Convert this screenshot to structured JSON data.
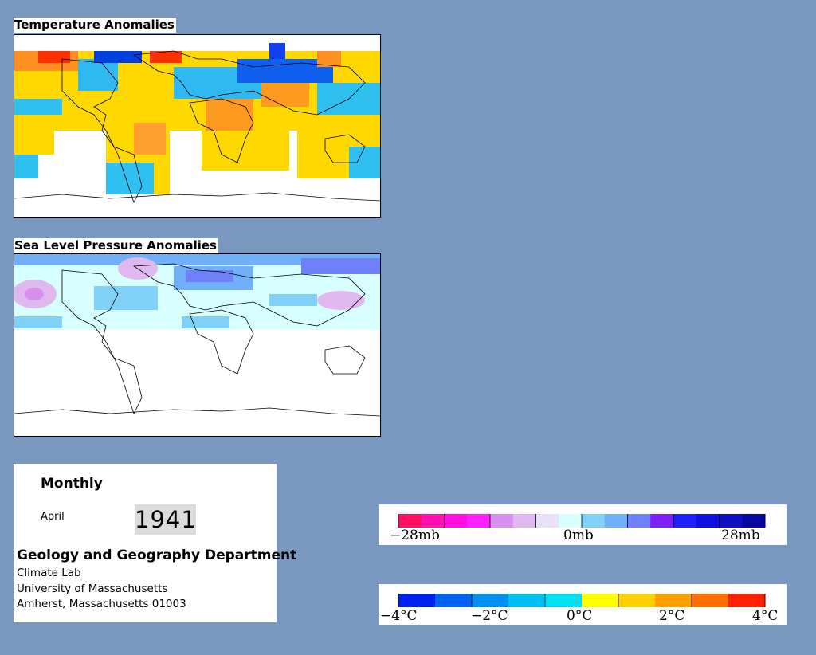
{
  "temperature_map": {
    "title": "Temperature Anomalies"
  },
  "pressure_map": {
    "title": "Sea Level Pressure Anomalies"
  },
  "info": {
    "period": "Monthly",
    "month": "April",
    "year": "1941",
    "department": "Geology and Geography Department",
    "address_lines": [
      "Climate Lab",
      "University of Massachusetts",
      "Amherst, Massachusetts 01003"
    ]
  },
  "pressure_legend": {
    "labels": [
      "−28mb",
      "0mb",
      "28mb"
    ],
    "colors": [
      "#ff1060",
      "#ff10b0",
      "#ff10e0",
      "#ff20ff",
      "#d890f0",
      "#e0b8f0",
      "#e8e0f8",
      "#d8ffff",
      "#80d0f8",
      "#70b0f8",
      "#7080f8",
      "#8020f8",
      "#2020f8",
      "#1010e0",
      "#1010c0",
      "#0808a0"
    ]
  },
  "temperature_legend": {
    "labels": [
      "−4°C",
      "−2°C",
      "0°C",
      "2°C",
      "4°C"
    ],
    "colors": [
      "#0020f0",
      "#0060f0",
      "#0090f0",
      "#00c0f0",
      "#00e0f0",
      "#ffff00",
      "#ffd000",
      "#ffa000",
      "#ff7000",
      "#ff2000"
    ]
  }
}
